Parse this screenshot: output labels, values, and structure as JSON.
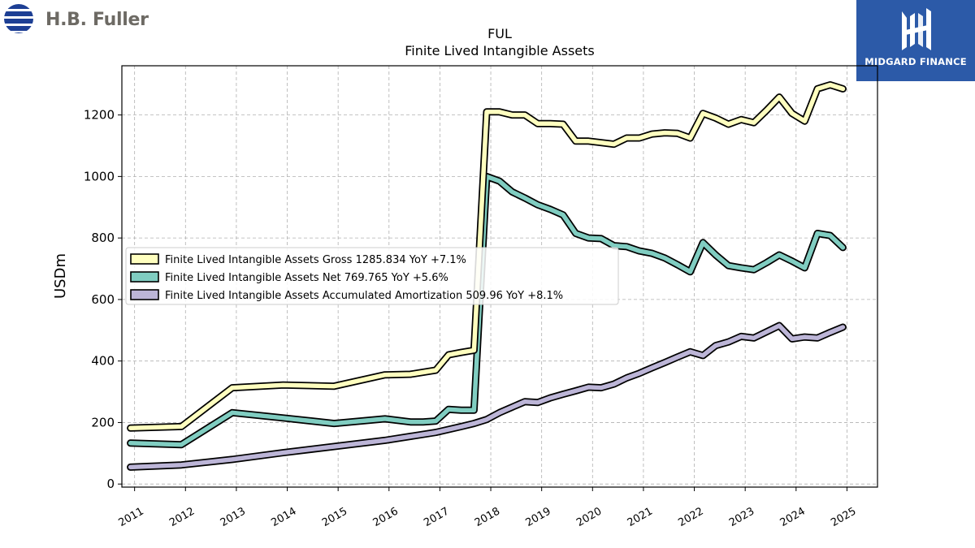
{
  "brand": {
    "left_logo_text": "H.B. Fuller",
    "right_logo_text": "MIDGARD FINANCE"
  },
  "chart_data": {
    "type": "line",
    "title": "FUL",
    "subtitle": "Finite Lived Intangible Assets",
    "xlabel": "",
    "ylabel": "USDm",
    "xlim": [
      2010.75,
      2025.6
    ],
    "ylim": [
      -10,
      1360
    ],
    "x_ticks": [
      "2011",
      "2012",
      "2013",
      "2014",
      "2015",
      "2016",
      "2017",
      "2018",
      "2019",
      "2020",
      "2021",
      "2022",
      "2023",
      "2024",
      "2025"
    ],
    "y_ticks": [
      0,
      200,
      400,
      600,
      800,
      1000,
      1200
    ],
    "grid": true,
    "legend_position": "center-left",
    "series": [
      {
        "name": "Finite Lived Intangible Assets Gross",
        "legend_label": "Finite Lived Intangible Assets Gross  1285.834 YoY +7.1%",
        "color": "#ffffbf",
        "x": [
          2010.92,
          2011.92,
          2012.92,
          2013.92,
          2014.92,
          2015.92,
          2016.42,
          2016.92,
          2017.17,
          2017.42,
          2017.67,
          2017.92,
          2018.17,
          2018.42,
          2018.67,
          2018.92,
          2019.17,
          2019.42,
          2019.67,
          2019.92,
          2020.17,
          2020.42,
          2020.67,
          2020.92,
          2021.17,
          2021.42,
          2021.67,
          2021.92,
          2022.17,
          2022.42,
          2022.67,
          2022.92,
          2023.17,
          2023.42,
          2023.67,
          2023.92,
          2024.17,
          2024.42,
          2024.67,
          2024.92
        ],
        "y": [
          182,
          187,
          313,
          322,
          318,
          355,
          357,
          370,
          420,
          428,
          435,
          1210,
          1210,
          1200,
          1200,
          1172,
          1172,
          1170,
          1115,
          1115,
          1110,
          1105,
          1125,
          1125,
          1138,
          1142,
          1140,
          1125,
          1205,
          1190,
          1170,
          1185,
          1175,
          1215,
          1258,
          1205,
          1180,
          1285,
          1298,
          1285
        ]
      },
      {
        "name": "Finite Lived Intangible Assets Net",
        "legend_label": "Finite Lived Intangible Assets Net  769.765 YoY +5.6%",
        "color": "#80cdc1",
        "x": [
          2010.92,
          2011.92,
          2012.92,
          2013.92,
          2014.92,
          2015.92,
          2016.42,
          2016.67,
          2016.92,
          2017.17,
          2017.42,
          2017.67,
          2017.92,
          2018.17,
          2018.42,
          2018.67,
          2018.92,
          2019.17,
          2019.42,
          2019.67,
          2019.92,
          2020.17,
          2020.42,
          2020.67,
          2020.92,
          2021.17,
          2021.42,
          2021.67,
          2021.92,
          2022.17,
          2022.42,
          2022.67,
          2022.92,
          2023.17,
          2023.42,
          2023.67,
          2023.92,
          2024.17,
          2024.42,
          2024.67,
          2024.92
        ],
        "y": [
          133,
          128,
          232,
          215,
          197,
          212,
          202,
          202,
          205,
          243,
          240,
          240,
          1000,
          985,
          950,
          930,
          908,
          893,
          875,
          815,
          800,
          798,
          775,
          772,
          758,
          750,
          735,
          713,
          690,
          785,
          745,
          710,
          703,
          697,
          720,
          745,
          725,
          703,
          815,
          808,
          769
        ]
      },
      {
        "name": "Finite Lived Intangible Assets Accumulated Amortization",
        "legend_label": "Finite Lived Intangible Assets Accumulated Amortization  509.96 YoY +8.1%",
        "color": "#bcb5d7",
        "x": [
          2010.92,
          2011.92,
          2012.92,
          2013.92,
          2014.92,
          2015.92,
          2016.42,
          2016.92,
          2017.42,
          2017.67,
          2017.92,
          2018.17,
          2018.42,
          2018.67,
          2018.92,
          2019.17,
          2019.42,
          2019.67,
          2019.92,
          2020.17,
          2020.42,
          2020.67,
          2020.92,
          2021.17,
          2021.42,
          2021.67,
          2021.92,
          2022.17,
          2022.42,
          2022.67,
          2022.92,
          2023.17,
          2023.42,
          2023.67,
          2023.92,
          2024.17,
          2024.42,
          2024.67,
          2024.92
        ],
        "y": [
          55,
          62,
          80,
          102,
          122,
          142,
          155,
          168,
          187,
          197,
          210,
          232,
          250,
          268,
          265,
          280,
          292,
          303,
          315,
          313,
          325,
          345,
          360,
          378,
          395,
          413,
          430,
          418,
          450,
          462,
          480,
          475,
          495,
          515,
          472,
          478,
          475,
          493,
          510
        ]
      }
    ]
  }
}
